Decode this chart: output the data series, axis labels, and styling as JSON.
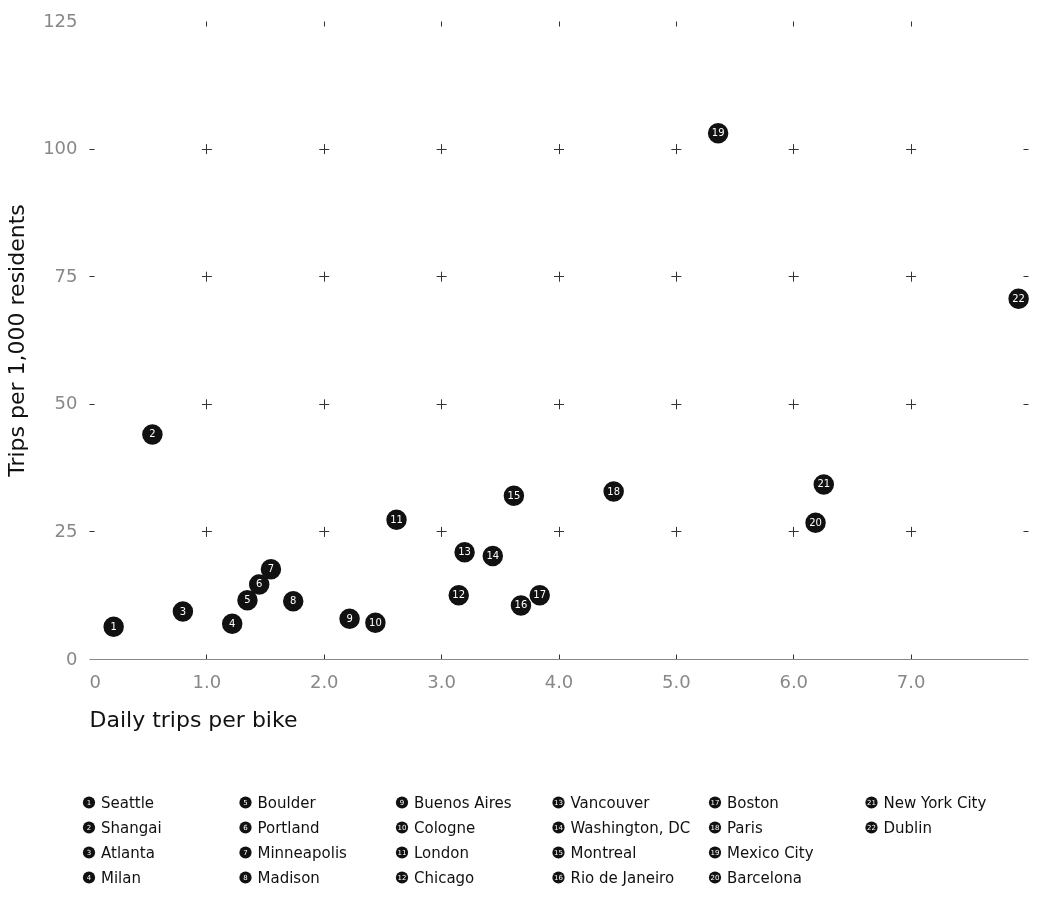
{
  "chart_data": {
    "type": "scatter",
    "xlabel": "Daily trips per bike",
    "ylabel": "Trips per 1,000 residents",
    "xlim": [
      0,
      8
    ],
    "ylim": [
      0,
      125
    ],
    "xticks": [
      {
        "value": 0,
        "label": "0"
      },
      {
        "value": 1,
        "label": "1.0"
      },
      {
        "value": 2,
        "label": "2.0"
      },
      {
        "value": 3,
        "label": "3.0"
      },
      {
        "value": 4,
        "label": "4.0"
      },
      {
        "value": 5,
        "label": "5.0"
      },
      {
        "value": 6,
        "label": "6.0"
      },
      {
        "value": 7,
        "label": "7.0"
      }
    ],
    "yticks": [
      0,
      25,
      50,
      75,
      100,
      125
    ],
    "grid": true,
    "legend": "bottom",
    "marker": "circle",
    "annotations": [
      {
        "text": "1",
        "x": 0.21,
        "y": 6.3
      },
      {
        "text": "2",
        "x": 0.54,
        "y": 44
      },
      {
        "text": "3",
        "x": 0.8,
        "y": 9.3
      },
      {
        "text": "4",
        "x": 1.22,
        "y": 6.9
      },
      {
        "text": "5",
        "x": 1.35,
        "y": 11.5
      },
      {
        "text": "6",
        "x": 1.45,
        "y": 14.6
      },
      {
        "text": "7",
        "x": 1.55,
        "y": 17.6
      },
      {
        "text": "8",
        "x": 1.74,
        "y": 11.3
      },
      {
        "text": "9",
        "x": 2.22,
        "y": 7.9
      },
      {
        "text": "10",
        "x": 2.44,
        "y": 7.1
      },
      {
        "text": "11",
        "x": 2.62,
        "y": 27.3
      },
      {
        "text": "12",
        "x": 3.15,
        "y": 12.5
      },
      {
        "text": "13",
        "x": 3.2,
        "y": 20.9
      },
      {
        "text": "14",
        "x": 3.44,
        "y": 20.2
      },
      {
        "text": "15",
        "x": 3.62,
        "y": 32
      },
      {
        "text": "16",
        "x": 3.68,
        "y": 10.5
      },
      {
        "text": "17",
        "x": 3.84,
        "y": 12.5
      },
      {
        "text": "18",
        "x": 4.47,
        "y": 32.8
      },
      {
        "text": "19",
        "x": 5.36,
        "y": 103
      },
      {
        "text": "20",
        "x": 6.19,
        "y": 26.7
      },
      {
        "text": "21",
        "x": 6.26,
        "y": 34.2
      },
      {
        "text": "22",
        "x": 7.92,
        "y": 70.6
      }
    ],
    "series": [
      {
        "name": "Seattle",
        "color": "#111111",
        "x": [
          0.21
        ],
        "values": [
          6.3
        ]
      },
      {
        "name": "Shangai",
        "color": "#111111",
        "x": [
          0.54
        ],
        "values": [
          44
        ]
      },
      {
        "name": "Atlanta",
        "color": "#111111",
        "x": [
          0.8
        ],
        "values": [
          9.3
        ]
      },
      {
        "name": "Milan",
        "color": "#111111",
        "x": [
          1.22
        ],
        "values": [
          6.9
        ]
      },
      {
        "name": "Boulder",
        "color": "#111111",
        "x": [
          1.35
        ],
        "values": [
          11.5
        ]
      },
      {
        "name": "Portland",
        "color": "#111111",
        "x": [
          1.45
        ],
        "values": [
          14.6
        ]
      },
      {
        "name": "Minneapolis",
        "color": "#111111",
        "x": [
          1.55
        ],
        "values": [
          17.6
        ]
      },
      {
        "name": "Madison",
        "color": "#111111",
        "x": [
          1.74
        ],
        "values": [
          11.3
        ]
      },
      {
        "name": "Buenos Aires",
        "color": "#111111",
        "x": [
          2.22
        ],
        "values": [
          7.9
        ]
      },
      {
        "name": "Cologne",
        "color": "#111111",
        "x": [
          2.44
        ],
        "values": [
          7.1
        ]
      },
      {
        "name": "London",
        "color": "#111111",
        "x": [
          2.62
        ],
        "values": [
          27.3
        ]
      },
      {
        "name": "Chicago",
        "color": "#111111",
        "x": [
          3.15
        ],
        "values": [
          12.5
        ]
      },
      {
        "name": "Vancouver",
        "color": "#111111",
        "x": [
          3.2
        ],
        "values": [
          20.9
        ]
      },
      {
        "name": "Washington, DC",
        "color": "#111111",
        "x": [
          3.44
        ],
        "values": [
          20.2
        ]
      },
      {
        "name": "Montreal",
        "color": "#111111",
        "x": [
          3.62
        ],
        "values": [
          32
        ]
      },
      {
        "name": "Rio de Janeiro",
        "color": "#111111",
        "x": [
          3.68
        ],
        "values": [
          10.5
        ]
      },
      {
        "name": "Boston",
        "color": "#111111",
        "x": [
          3.84
        ],
        "values": [
          12.5
        ]
      },
      {
        "name": "Paris",
        "color": "#111111",
        "x": [
          4.47
        ],
        "values": [
          32.8
        ]
      },
      {
        "name": "Mexico City",
        "color": "#111111",
        "x": [
          5.36
        ],
        "values": [
          103
        ]
      },
      {
        "name": "Barcelona",
        "color": "#111111",
        "x": [
          6.19
        ],
        "values": [
          26.7
        ]
      },
      {
        "name": "New York City",
        "color": "#111111",
        "x": [
          6.26
        ],
        "values": [
          34.2
        ]
      },
      {
        "name": "Dublin",
        "color": "#111111",
        "x": [
          7.92
        ],
        "values": [
          70.6
        ]
      }
    ]
  }
}
